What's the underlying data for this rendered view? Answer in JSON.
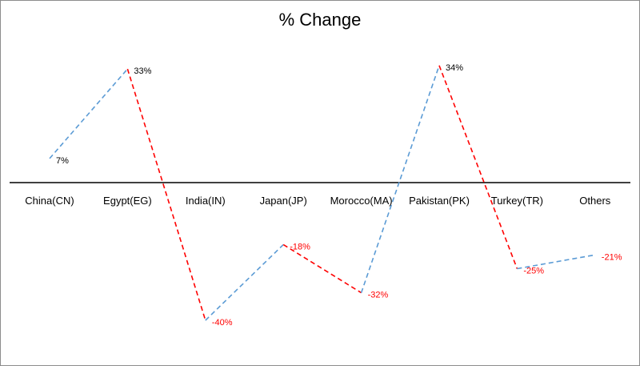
{
  "chart_data": {
    "type": "line",
    "title": "% Change",
    "categories": [
      "China(CN)",
      "Egypt(EG)",
      "India(IN)",
      "Japan(JP)",
      "Morocco(MA)",
      "Pakistan(PK)",
      "Turkey(TR)",
      "Others"
    ],
    "values": [
      7,
      33,
      -40,
      -18,
      -32,
      34,
      -25,
      -21
    ],
    "data_labels": [
      "7%",
      "33%",
      "-40%",
      "-18%",
      "-32%",
      "34%",
      "-25%",
      "-21%"
    ],
    "ylim": [
      -50,
      45
    ],
    "grid": false,
    "legend": "none",
    "line_style": "dashed",
    "segment_colors_rule": "blue for increasing segments, red for decreasing segments",
    "colors": {
      "increase": "#5b9bd5",
      "decrease": "#ff0000",
      "axis": "#000000",
      "positive_label": "#000000",
      "negative_label": "#ff0000"
    }
  }
}
